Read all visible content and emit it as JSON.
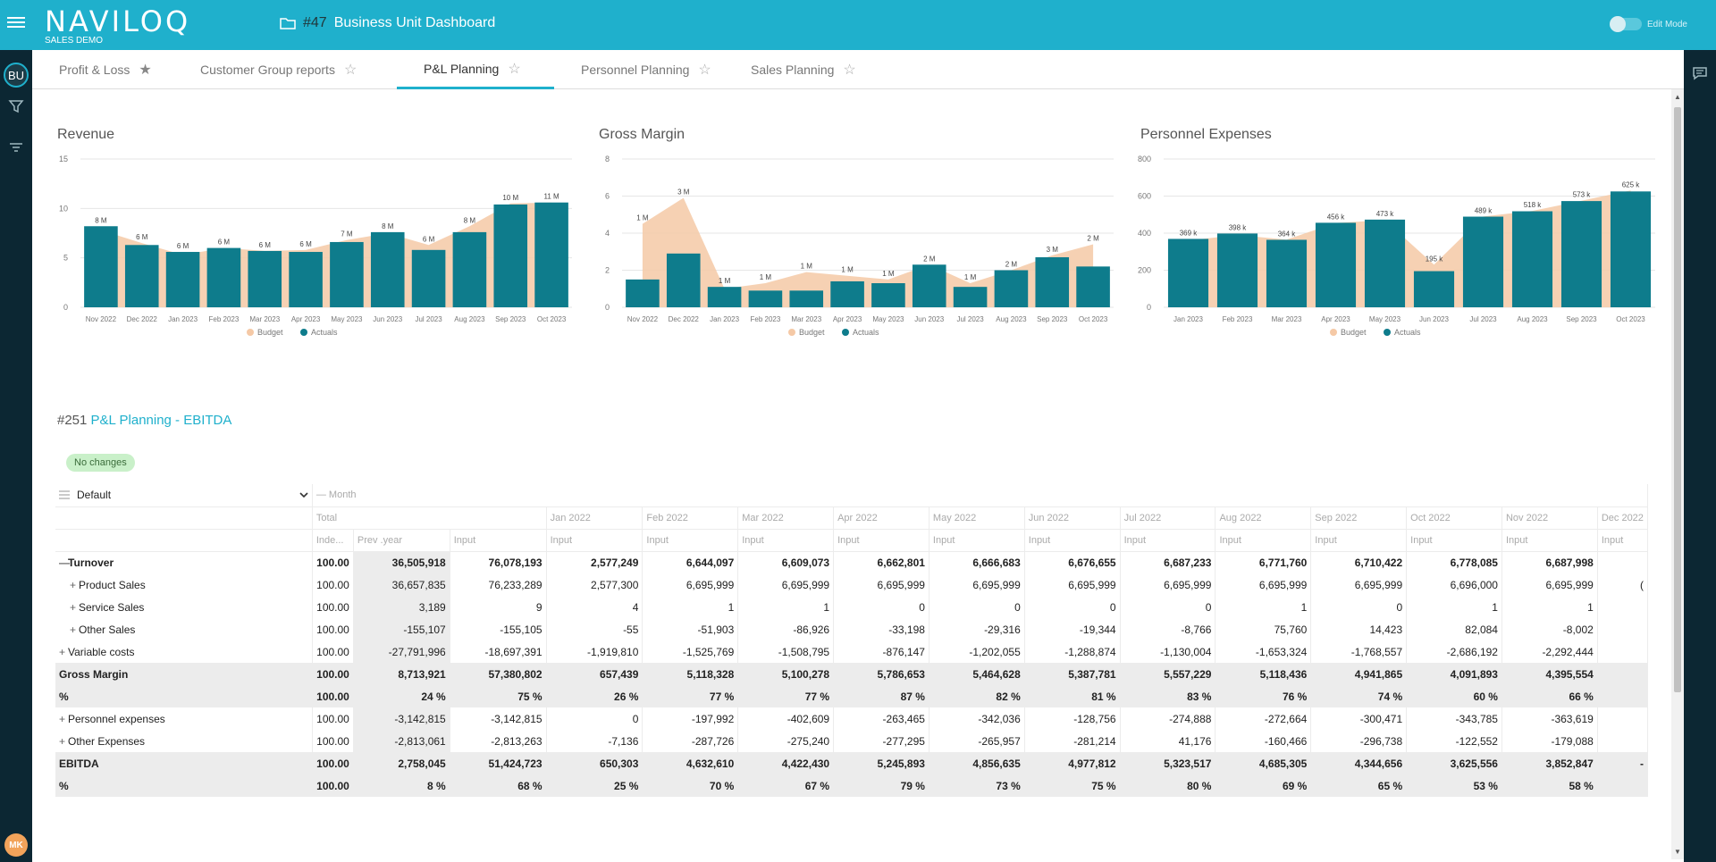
{
  "header": {
    "logo": "NAVILOQ",
    "logo_sub": "SALES DEMO",
    "dashboard_number": "#47",
    "dashboard_title": "Business Unit Dashboard",
    "edit_mode_label": "Edit Mode"
  },
  "rail": {
    "bu_label": "BU",
    "avatar": "MK"
  },
  "tabs": [
    {
      "label": "Profit & Loss",
      "starred": true
    },
    {
      "label": "Customer Group reports",
      "starred": false
    },
    {
      "label": "P&L Planning",
      "starred": false,
      "active": true
    },
    {
      "label": "Personnel Planning",
      "starred": false
    },
    {
      "label": "Sales Planning",
      "starred": false
    }
  ],
  "chart_data": [
    {
      "type": "bar",
      "title": "Revenue",
      "categories": [
        "Nov 2022",
        "Dec 2022",
        "Jan 2023",
        "Feb 2023",
        "Mar 2023",
        "Apr 2023",
        "May 2023",
        "Jun 2023",
        "Jul 2023",
        "Aug 2023",
        "Sep 2023",
        "Oct 2023"
      ],
      "series": [
        {
          "name": "Budget",
          "kind": "area",
          "color": "#f5c9a6",
          "values": [
            7.8,
            6.5,
            5.3,
            6.0,
            5.7,
            5.8,
            6.8,
            7.5,
            6.3,
            8.2,
            10.5,
            10.6
          ]
        },
        {
          "name": "Actuals",
          "kind": "bar",
          "color": "#0e7c8c",
          "values": [
            8.2,
            6.3,
            5.6,
            6.0,
            5.7,
            5.6,
            6.6,
            7.6,
            5.8,
            7.6,
            10.4,
            10.6
          ]
        }
      ],
      "data_labels": [
        "8 M",
        "6 M",
        "6 M",
        "6 M",
        "6 M",
        "6 M",
        "7 M",
        "8 M",
        "6 M",
        "8 M",
        "10 M",
        "11 M"
      ],
      "yticks": [
        "0",
        "5",
        "10",
        "15"
      ],
      "ylim": [
        0,
        15
      ]
    },
    {
      "type": "bar",
      "title": "Gross Margin",
      "categories": [
        "Nov 2022",
        "Dec 2022",
        "Jan 2023",
        "Feb 2023",
        "Mar 2023",
        "Apr 2023",
        "May 2023",
        "Jun 2023",
        "Jul 2023",
        "Aug 2023",
        "Sep 2023",
        "Oct 2023"
      ],
      "series": [
        {
          "name": "Budget",
          "kind": "area",
          "color": "#f5c9a6",
          "values": [
            4.5,
            5.9,
            1.0,
            1.3,
            1.9,
            1.7,
            1.5,
            2.3,
            1.3,
            2.0,
            2.8,
            3.4
          ]
        },
        {
          "name": "Actuals",
          "kind": "bar",
          "color": "#0e7c8c",
          "values": [
            1.5,
            2.9,
            1.1,
            0.9,
            0.9,
            1.4,
            1.3,
            2.3,
            1.1,
            2.0,
            2.7,
            2.2
          ]
        }
      ],
      "data_labels": [
        "1 M",
        "3 M",
        "1 M",
        "1 M",
        "1 M",
        "1 M",
        "1 M",
        "2 M",
        "1 M",
        "2 M",
        "3 M",
        "2 M"
      ],
      "yticks": [
        "0",
        "2",
        "4",
        "6",
        "8"
      ],
      "ylim": [
        0,
        8
      ]
    },
    {
      "type": "bar",
      "title": "Personnel Expenses",
      "categories": [
        "Jan 2023",
        "Feb 2023",
        "Mar 2023",
        "Apr 2023",
        "May 2023",
        "Jun 2023",
        "Jul 2023",
        "Aug 2023",
        "Sep 2023",
        "Oct 2023"
      ],
      "series": [
        {
          "name": "Budget",
          "kind": "area",
          "color": "#f5c9a6",
          "values": [
            360,
            390,
            365,
            455,
            470,
            230,
            490,
            520,
            575,
            630
          ]
        },
        {
          "name": "Actuals",
          "kind": "bar",
          "color": "#0e7c8c",
          "values": [
            369,
            398,
            364,
            456,
            473,
            195,
            489,
            518,
            573,
            625
          ]
        }
      ],
      "data_labels": [
        "369 k",
        "398 k",
        "364 k",
        "456 k",
        "473 k",
        "195 k",
        "489 k",
        "518 k",
        "573 k",
        "625 k"
      ],
      "yticks": [
        "0",
        "200",
        "400",
        "600",
        "800"
      ],
      "ylim": [
        0,
        800
      ]
    }
  ],
  "legend": {
    "budget": "Budget",
    "actuals": "Actuals"
  },
  "report": {
    "number": "#251",
    "title": "P&L Planning - EBITDA",
    "badge": "No changes",
    "layout_select": "Default",
    "month_header": "— Month",
    "total_header": "Total",
    "months": [
      "Jan 2022",
      "Feb 2022",
      "Mar 2022",
      "Apr 2022",
      "May 2022",
      "Jun 2022",
      "Jul 2022",
      "Aug 2022",
      "Sep 2022",
      "Oct 2022",
      "Nov 2022",
      "Dec 2022"
    ],
    "sub_headers": {
      "index": "Inde...",
      "prev": "Prev .year",
      "input": "Input"
    },
    "rows": [
      {
        "label": "Turnover",
        "expander": "—",
        "indent": 0,
        "bold": true,
        "shade": false,
        "index": "100.00",
        "prev": "36,505,918",
        "total": "76,078,193",
        "months": [
          "2,577,249",
          "6,644,097",
          "6,609,073",
          "6,662,801",
          "6,666,683",
          "6,676,655",
          "6,687,233",
          "6,771,760",
          "6,710,422",
          "6,778,085",
          "6,687,998",
          ""
        ]
      },
      {
        "label": "Product Sales",
        "expander": "+",
        "indent": 1,
        "bold": false,
        "shade": false,
        "index": "100.00",
        "prev": "36,657,835",
        "total": "76,233,289",
        "months": [
          "2,577,300",
          "6,695,999",
          "6,695,999",
          "6,695,999",
          "6,695,999",
          "6,695,999",
          "6,695,999",
          "6,695,999",
          "6,695,999",
          "6,696,000",
          "6,695,999",
          "("
        ]
      },
      {
        "label": "Service Sales",
        "expander": "+",
        "indent": 1,
        "bold": false,
        "shade": false,
        "index": "100.00",
        "prev": "3,189",
        "total": "9",
        "months": [
          "4",
          "1",
          "1",
          "0",
          "0",
          "0",
          "0",
          "1",
          "0",
          "1",
          "1",
          ""
        ]
      },
      {
        "label": "Other Sales",
        "expander": "+",
        "indent": 1,
        "bold": false,
        "shade": false,
        "index": "100.00",
        "prev": "-155,107",
        "total": "-155,105",
        "months": [
          "-55",
          "-51,903",
          "-86,926",
          "-33,198",
          "-29,316",
          "-19,344",
          "-8,766",
          "75,760",
          "14,423",
          "82,084",
          "-8,002",
          ""
        ]
      },
      {
        "label": "Variable costs",
        "expander": "+",
        "indent": 0,
        "bold": false,
        "shade": false,
        "index": "100.00",
        "prev": "-27,791,996",
        "total": "-18,697,391",
        "months": [
          "-1,919,810",
          "-1,525,769",
          "-1,508,795",
          "-876,147",
          "-1,202,055",
          "-1,288,874",
          "-1,130,004",
          "-1,653,324",
          "-1,768,557",
          "-2,686,192",
          "-2,292,444",
          ""
        ]
      },
      {
        "label": "Gross Margin",
        "expander": "",
        "indent": 0,
        "bold": true,
        "shade": true,
        "index": "100.00",
        "prev": "8,713,921",
        "total": "57,380,802",
        "months": [
          "657,439",
          "5,118,328",
          "5,100,278",
          "5,786,653",
          "5,464,628",
          "5,387,781",
          "5,557,229",
          "5,118,436",
          "4,941,865",
          "4,091,893",
          "4,395,554",
          ""
        ]
      },
      {
        "label": "%",
        "expander": "",
        "indent": 0,
        "bold": true,
        "shade": true,
        "index": "100.00",
        "prev": "24 %",
        "total": "75 %",
        "months": [
          "26 %",
          "77 %",
          "77 %",
          "87 %",
          "82 %",
          "81 %",
          "83 %",
          "76 %",
          "74 %",
          "60 %",
          "66 %",
          ""
        ]
      },
      {
        "label": "Personnel expenses",
        "expander": "+",
        "indent": 0,
        "bold": false,
        "shade": false,
        "index": "100.00",
        "prev": "-3,142,815",
        "total": "-3,142,815",
        "months": [
          "0",
          "-197,992",
          "-402,609",
          "-263,465",
          "-342,036",
          "-128,756",
          "-274,888",
          "-272,664",
          "-300,471",
          "-343,785",
          "-363,619",
          ""
        ]
      },
      {
        "label": "Other Expenses",
        "expander": "+",
        "indent": 0,
        "bold": false,
        "shade": false,
        "index": "100.00",
        "prev": "-2,813,061",
        "total": "-2,813,263",
        "months": [
          "-7,136",
          "-287,726",
          "-275,240",
          "-277,295",
          "-265,957",
          "-281,214",
          "41,176",
          "-160,466",
          "-296,738",
          "-122,552",
          "-179,088",
          ""
        ]
      },
      {
        "label": "EBITDA",
        "expander": "",
        "indent": 0,
        "bold": true,
        "shade": true,
        "index": "100.00",
        "prev": "2,758,045",
        "total": "51,424,723",
        "months": [
          "650,303",
          "4,632,610",
          "4,422,430",
          "5,245,893",
          "4,856,635",
          "4,977,812",
          "5,323,517",
          "4,685,305",
          "4,344,656",
          "3,625,556",
          "3,852,847",
          "-"
        ]
      },
      {
        "label": "%",
        "expander": "",
        "indent": 0,
        "bold": true,
        "shade": true,
        "index": "100.00",
        "prev": "8 %",
        "total": "68 %",
        "months": [
          "25 %",
          "70 %",
          "67 %",
          "79 %",
          "73 %",
          "75 %",
          "80 %",
          "69 %",
          "65 %",
          "53 %",
          "58 %",
          ""
        ]
      }
    ]
  },
  "colors": {
    "brand": "#1fb0cc",
    "rail": "#0c2733",
    "budget": "#f5c9a6",
    "actuals": "#0e7c8c"
  }
}
